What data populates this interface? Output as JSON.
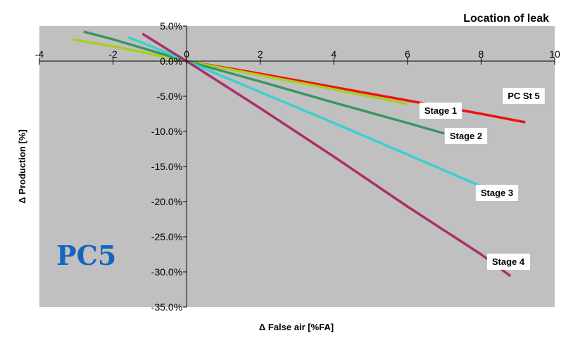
{
  "chart_data": {
    "type": "line",
    "title": "Location of leak",
    "xlabel": "Δ False air [%FA]",
    "ylabel": "Δ Production [%]",
    "xlim": [
      -4,
      10
    ],
    "ylim": [
      -35,
      5
    ],
    "x_ticks": [
      "-4",
      "-2",
      "0",
      "2",
      "4",
      "6",
      "8",
      "10"
    ],
    "y_ticks": [
      "5.0%",
      "0.0%",
      "-5.0%",
      "-10.0%",
      "-15.0%",
      "-20.0%",
      "-25.0%",
      "-30.0%",
      "-35.0%"
    ],
    "grid": false,
    "watermark": "PC5",
    "series": [
      {
        "name": "PC St 5",
        "color": "#ee1111",
        "x": [
          0,
          2,
          4,
          6,
          8,
          9.2
        ],
        "y": [
          0,
          -1.8,
          -3.7,
          -5.6,
          -7.5,
          -8.7
        ]
      },
      {
        "name": "Stage 1",
        "color": "#a6cf1e",
        "x": [
          -3.1,
          -2,
          0,
          2,
          4,
          6
        ],
        "y": [
          3.1,
          2.1,
          0,
          -2,
          -4,
          -6.1
        ]
      },
      {
        "name": "Stage 2",
        "color": "#3a9464",
        "x": [
          -2.8,
          -2,
          0,
          2,
          4,
          6,
          7
        ],
        "y": [
          4.2,
          3.1,
          0,
          -2.9,
          -5.9,
          -8.8,
          -10.3
        ]
      },
      {
        "name": "Stage 3",
        "color": "#3ecfd0",
        "x": [
          -1.6,
          -1,
          0,
          2,
          4,
          6,
          8
        ],
        "y": [
          3.4,
          2.2,
          0,
          -4.4,
          -8.8,
          -13.3,
          -17.8
        ]
      },
      {
        "name": "Stage 4",
        "color": "#a8306a",
        "x": [
          -1.2,
          -0.5,
          0,
          2,
          4,
          6,
          8,
          8.8
        ],
        "y": [
          3.9,
          1.6,
          0,
          -6.7,
          -13.6,
          -20.7,
          -27.5,
          -30.6
        ]
      }
    ]
  }
}
